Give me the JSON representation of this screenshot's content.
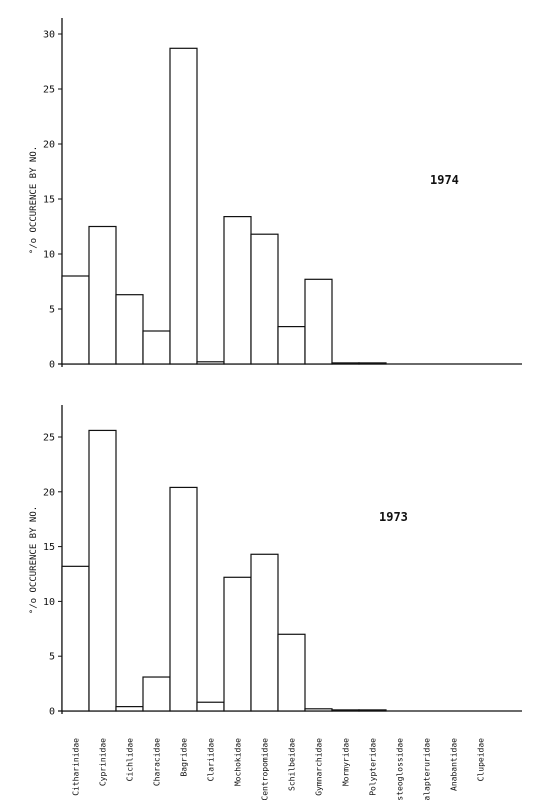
{
  "chart_data": {
    "type": "bar",
    "categories": [
      "Citharinidae",
      "Cyprinidae",
      "Cichlidae",
      "Characidae",
      "Bagridae",
      "Clariidae",
      "Mochokidae",
      "Centropomidae",
      "Schilbeidae",
      "Gymnarchidae",
      "Mormyridae",
      "Polypteridae",
      "Osteoglossidae",
      "Malapteruridae",
      "Anabantidae",
      "Clupeidae"
    ],
    "panels": [
      {
        "annotation": "1974",
        "ylabel": "°/o OCCURENCE BY NO.",
        "ylim": [
          0,
          30
        ],
        "yticks": [
          0,
          5,
          10,
          15,
          20,
          25,
          30
        ],
        "series": [
          {
            "values": [
              8.0,
              12.5,
              6.3,
              3.0,
              28.7,
              0.2,
              13.4,
              11.8,
              3.4,
              7.7,
              0.1,
              0.1,
              0,
              0,
              0,
              0
            ]
          }
        ]
      },
      {
        "annotation": "1973",
        "ylabel": "°/o OCCURENCE BY NO.",
        "ylim": [
          0,
          25
        ],
        "yticks": [
          0,
          5,
          10,
          15,
          20,
          25
        ],
        "series": [
          {
            "values": [
              13.2,
              25.6,
              0.4,
              3.1,
              20.4,
              0.8,
              12.2,
              14.3,
              7.0,
              0.2,
              0.1,
              0.1,
              0,
              0,
              0,
              0
            ]
          }
        ]
      }
    ],
    "grid": false,
    "legend": "none"
  }
}
